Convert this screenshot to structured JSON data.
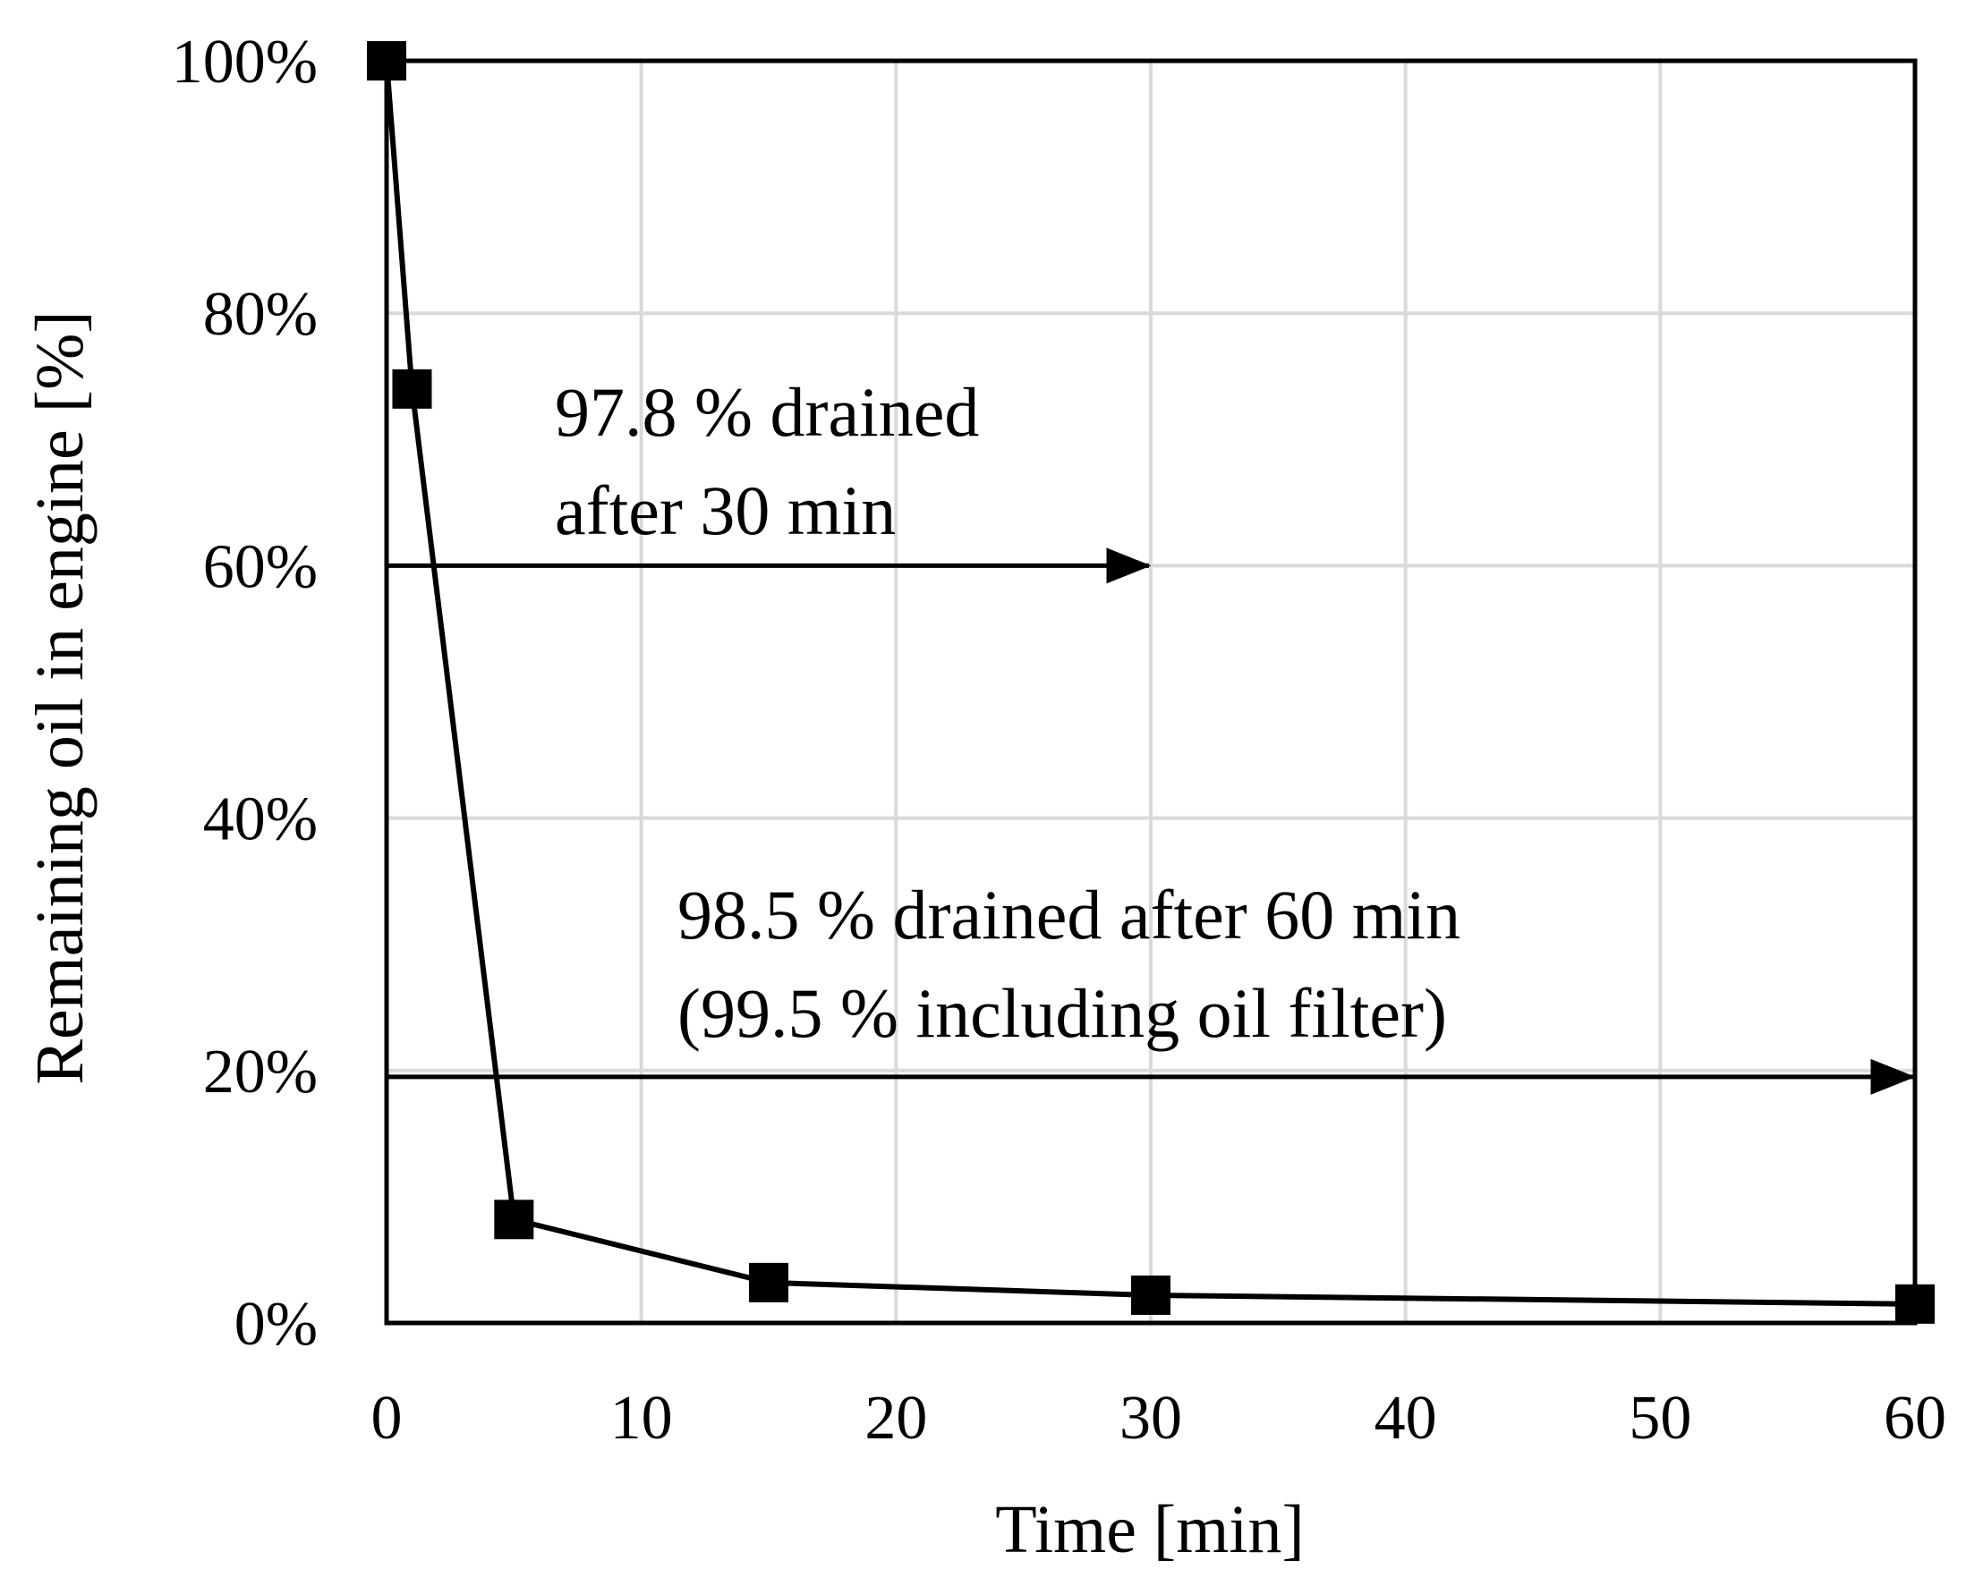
{
  "chart_data": {
    "type": "line",
    "title": "",
    "xlabel": "Time [min]",
    "ylabel": "Remaining oil in engine [%]",
    "xlim": [
      0,
      60
    ],
    "ylim": [
      0,
      100
    ],
    "grid": true,
    "x_ticks": [
      0,
      10,
      20,
      30,
      40,
      50,
      60
    ],
    "x_tick_labels": [
      "0",
      "10",
      "20",
      "30",
      "40",
      "50",
      "60"
    ],
    "y_ticks": [
      0,
      20,
      40,
      60,
      80,
      100
    ],
    "y_tick_labels": [
      "0%",
      "20%",
      "40%",
      "60%",
      "80%",
      "100%"
    ],
    "series": [
      {
        "name": "Remaining oil",
        "marker": "square",
        "color": "#000000",
        "x": [
          0,
          1,
          5,
          15,
          30,
          60
        ],
        "y": [
          100,
          74,
          8.2,
          3.2,
          2.2,
          1.5
        ]
      }
    ],
    "annotations": [
      {
        "lines": [
          "97.8 % drained",
          "after 30 min"
        ],
        "arrow_from": [
          0,
          60
        ],
        "arrow_to": [
          30,
          60
        ]
      },
      {
        "lines": [
          "98.5 % drained after 60 min",
          "(99.5 % including oil filter)"
        ],
        "arrow_from": [
          0,
          19.5
        ],
        "arrow_to": [
          60,
          19.5
        ]
      }
    ]
  }
}
